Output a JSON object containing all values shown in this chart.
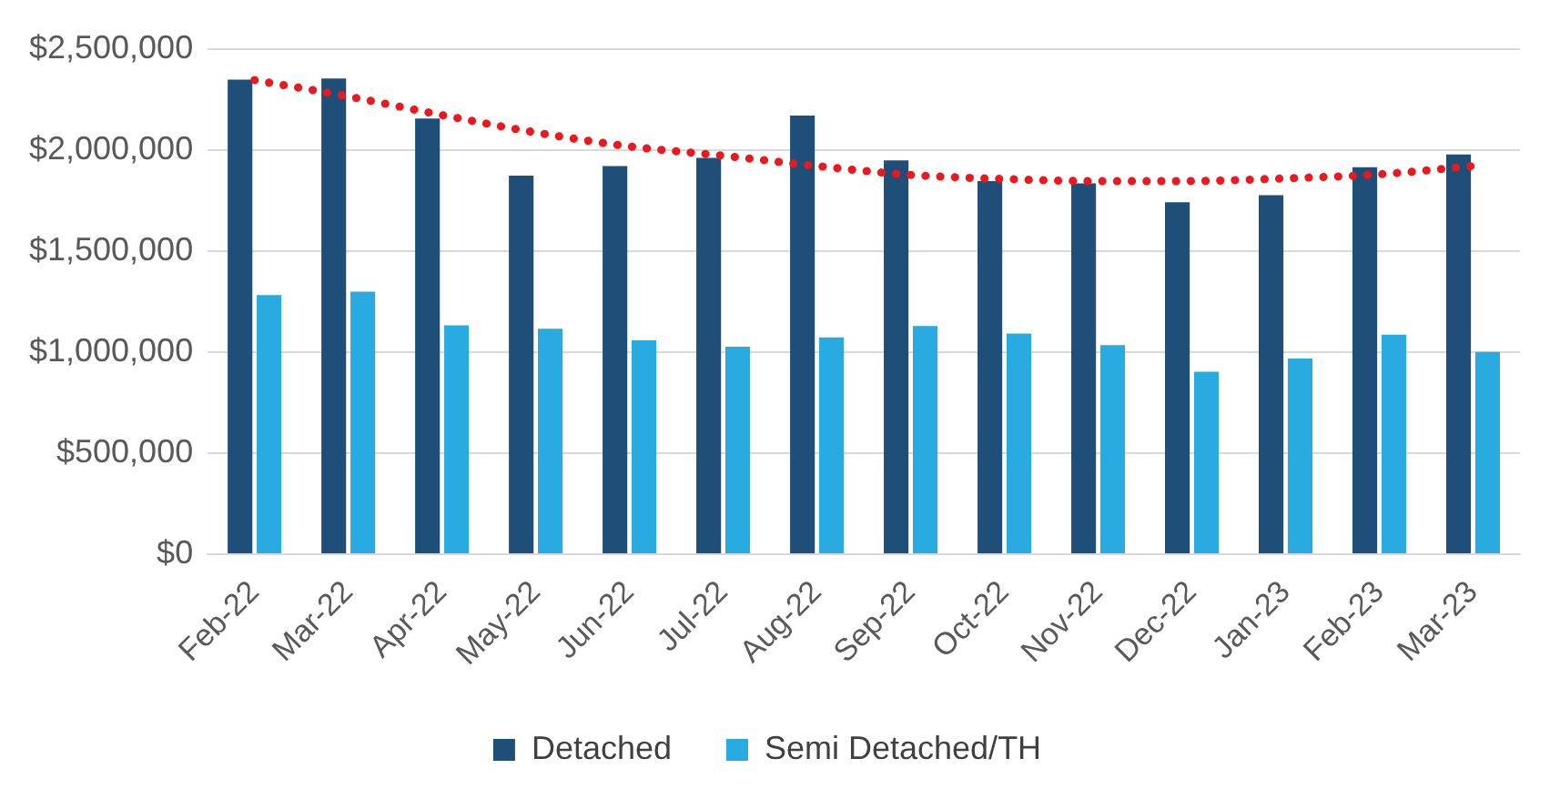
{
  "chart_data": {
    "type": "bar",
    "categories": [
      "Feb-22",
      "Mar-22",
      "Apr-22",
      "May-22",
      "Jun-22",
      "Jul-22",
      "Aug-22",
      "Sep-22",
      "Oct-22",
      "Nov-22",
      "Dec-22",
      "Jan-23",
      "Feb-23",
      "Mar-23"
    ],
    "series": [
      {
        "name": "Detached",
        "color": "#1f4e79",
        "values": [
          2347000,
          2353000,
          2155000,
          1873000,
          1920000,
          1960000,
          2170000,
          1948000,
          1845000,
          1834000,
          1741000,
          1776000,
          1914000,
          1977000
        ]
      },
      {
        "name": "Semi Detached/TH",
        "color": "#29abe2",
        "values": [
          1282000,
          1299000,
          1132000,
          1115000,
          1058000,
          1026000,
          1072000,
          1129000,
          1092000,
          1034000,
          902000,
          968000,
          1086000,
          1000000
        ]
      },
      {
        "type": "line",
        "color": "#e8191f",
        "line_style": "dotted",
        "marker": "none",
        "values": [
          2345000,
          2264000,
          2172000,
          2086000,
          2017000,
          1971000,
          1920000,
          1876000,
          1856000,
          1845000,
          1846000,
          1859000,
          1879000,
          1920000
        ]
      }
    ],
    "ylim": [
      0,
      2500000
    ],
    "yticks": [
      {
        "value": 0,
        "label": "$0"
      },
      {
        "value": 500000,
        "label": "$500,000"
      },
      {
        "value": 1000000,
        "label": "$1,000,000"
      },
      {
        "value": 1500000,
        "label": "$1,500,000"
      },
      {
        "value": 2000000,
        "label": "$2,000,000"
      },
      {
        "value": 2500000,
        "label": "$2,500,000"
      }
    ],
    "grid": "y",
    "legend": "bottom"
  }
}
